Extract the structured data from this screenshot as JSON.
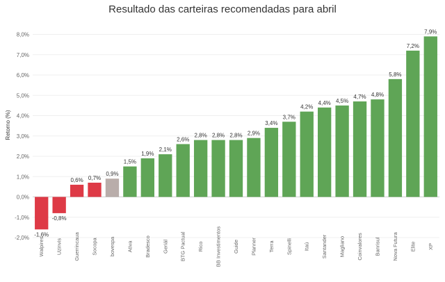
{
  "chart_data": {
    "type": "bar",
    "title": "Resultado das carteiras recomendadas para abril",
    "ylabel": "Retorno (%)",
    "xlabel": "",
    "ylim": [
      -2.0,
      8.5
    ],
    "yticks": [
      8.0,
      7.0,
      6.0,
      5.0,
      4.0,
      3.0,
      2.0,
      1.0,
      0.0,
      -1.0,
      -2.0
    ],
    "ytick_labels": [
      "8,0%",
      "7,0%",
      "6,0%",
      "5,0%",
      "4,0%",
      "3,0%",
      "2,0%",
      "1,0%",
      "0,0%",
      "-1,0%",
      "-2,0%"
    ],
    "grid": true,
    "colors": {
      "positive": "#5fa556",
      "negative": "#de3a46",
      "benchmark": "#b9adaa"
    },
    "bars": [
      {
        "category": "Walpires",
        "value": -1.6,
        "label": "-1,6%",
        "color_key": "negative"
      },
      {
        "category": "Uzinvis",
        "value": -0.8,
        "label": "-0,8%",
        "color_key": "negative"
      },
      {
        "category": "Guerrincaua",
        "value": 0.6,
        "label": "0,6%",
        "color_key": "negative"
      },
      {
        "category": "Socopa",
        "value": 0.7,
        "label": "0,7%",
        "color_key": "negative"
      },
      {
        "category": "bovespa",
        "value": 0.9,
        "label": "0,9%",
        "color_key": "benchmark"
      },
      {
        "category": "Ativa",
        "value": 1.5,
        "label": "1,5%",
        "color_key": "positive"
      },
      {
        "category": "Bradesco",
        "value": 1.9,
        "label": "1,9%",
        "color_key": "positive"
      },
      {
        "category": "Geriál",
        "value": 2.1,
        "label": "2,1%",
        "color_key": "positive"
      },
      {
        "category": "BTG Pactual",
        "value": 2.6,
        "label": "2,6%",
        "color_key": "positive"
      },
      {
        "category": "Rico",
        "value": 2.8,
        "label": "2,8%",
        "color_key": "positive"
      },
      {
        "category": "BB Investimentos",
        "value": 2.8,
        "label": "2,8%",
        "color_key": "positive"
      },
      {
        "category": "Guide",
        "value": 2.8,
        "label": "2,8%",
        "color_key": "positive"
      },
      {
        "category": "Planner",
        "value": 2.9,
        "label": "2,9%",
        "color_key": "positive"
      },
      {
        "category": "Terra",
        "value": 3.4,
        "label": "3,4%",
        "color_key": "positive"
      },
      {
        "category": "Spinelli",
        "value": 3.7,
        "label": "3,7%",
        "color_key": "positive"
      },
      {
        "category": "Itaú",
        "value": 4.2,
        "label": "4,2%",
        "color_key": "positive"
      },
      {
        "category": "Santander",
        "value": 4.4,
        "label": "4,4%",
        "color_key": "positive"
      },
      {
        "category": "Magliano",
        "value": 4.5,
        "label": "4,5%",
        "color_key": "positive"
      },
      {
        "category": "Coinvalores",
        "value": 4.7,
        "label": "4,7%",
        "color_key": "positive"
      },
      {
        "category": "Banrisul",
        "value": 4.8,
        "label": "4,8%",
        "color_key": "positive"
      },
      {
        "category": "Nova Futura",
        "value": 5.8,
        "label": "5,8%",
        "color_key": "positive"
      },
      {
        "category": "Elite",
        "value": 7.2,
        "label": "7,2%",
        "color_key": "positive"
      },
      {
        "category": "XP",
        "value": 7.9,
        "label": "7,9%",
        "color_key": "positive"
      }
    ]
  }
}
